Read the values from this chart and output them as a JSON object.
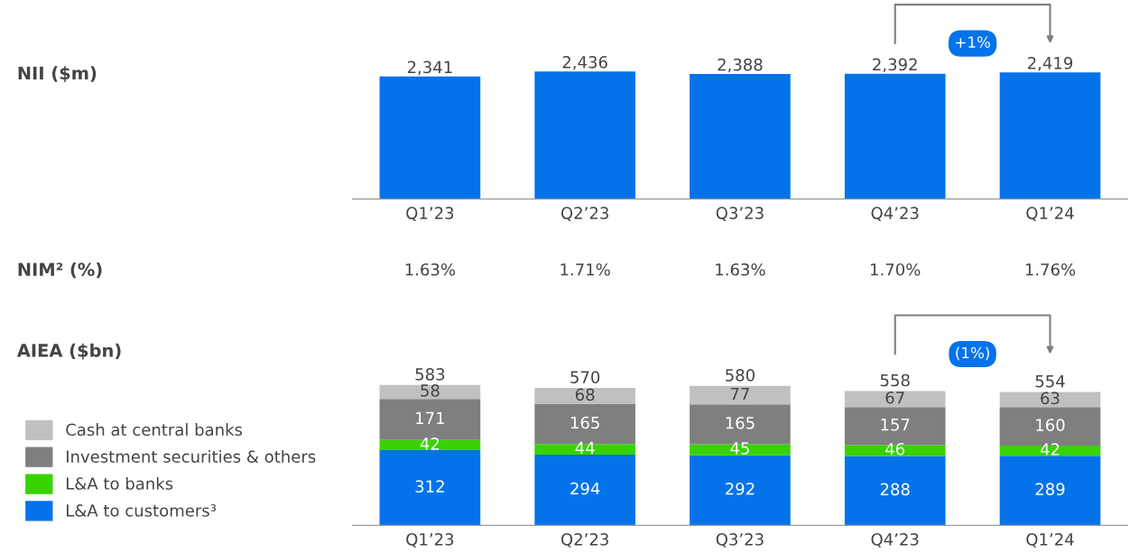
{
  "chart_data": [
    {
      "type": "bar",
      "ylabel": "NII ($m)",
      "categories": [
        "Q1’23",
        "Q2’23",
        "Q3’23",
        "Q4’23",
        "Q1’24"
      ],
      "values": [
        2341,
        2436,
        2388,
        2392,
        2419
      ],
      "value_labels": [
        "2,341",
        "2,436",
        "2,388",
        "2,392",
        "2,419"
      ],
      "color": "#0473ea",
      "annotations": [
        "+1%"
      ],
      "grid": false,
      "legend": false
    },
    {
      "type": "other",
      "ylabel": "NIM² (%)",
      "categories": [
        null,
        null,
        null,
        null,
        null
      ],
      "values": [
        1.63,
        1.71,
        1.63,
        1.7,
        1.76
      ],
      "value_labels": [
        "1.63%",
        "1.71%",
        "1.63%",
        "1.70%",
        "1.76%"
      ]
    },
    {
      "type": "bar",
      "ylabel": "AIEA ($bn)",
      "categories": [
        "Q1’23",
        "Q2’23",
        "Q3’23",
        "Q4’23",
        "Q1’24"
      ],
      "stacked": true,
      "data_labels": true,
      "totals": [
        "583",
        "570",
        "580",
        "558",
        "554"
      ],
      "annotations": [
        "(1%)"
      ],
      "grid": false,
      "legend": "left",
      "series": [
        {
          "name": "L&A to customers³",
          "color": "#0473ea",
          "values": [
            312,
            294,
            292,
            288,
            289
          ]
        },
        {
          "name": "L&A to banks",
          "color": "#38d200",
          "values": [
            42,
            44,
            45,
            46,
            42
          ]
        },
        {
          "name": "Investment securities & others",
          "color": "#7f7f7f",
          "values": [
            171,
            165,
            165,
            157,
            160
          ]
        },
        {
          "name": "Cash at central banks",
          "color": "#c0c0c0",
          "values": [
            58,
            68,
            77,
            67,
            63
          ]
        }
      ]
    }
  ]
}
